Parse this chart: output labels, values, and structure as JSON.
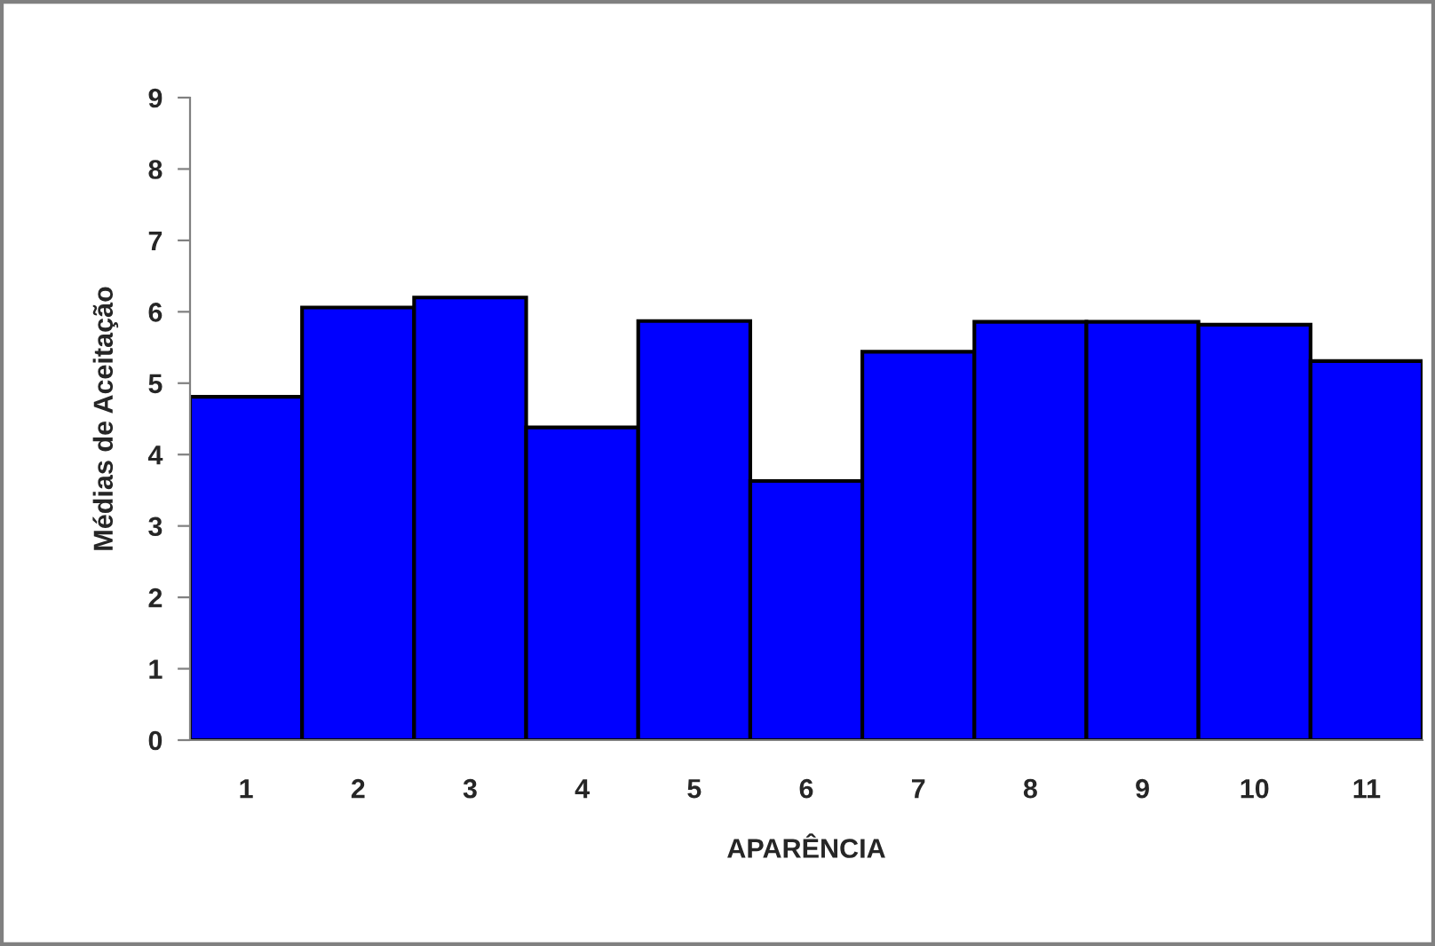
{
  "chart_data": {
    "type": "bar",
    "xlabel": "APARÊNCIA",
    "ylabel": "Médias de Aceitação",
    "categories": [
      "1",
      "2",
      "3",
      "4",
      "5",
      "6",
      "7",
      "8",
      "9",
      "10",
      "11"
    ],
    "values": [
      4.81,
      6.06,
      6.2,
      4.38,
      5.87,
      3.63,
      5.44,
      5.86,
      5.86,
      5.82,
      5.31
    ],
    "color": "#0000ff",
    "ylim": [
      0,
      9
    ],
    "yticks": [
      0,
      1,
      2,
      3,
      4,
      5,
      6,
      7,
      8,
      9
    ],
    "grid": false,
    "legend": false
  }
}
